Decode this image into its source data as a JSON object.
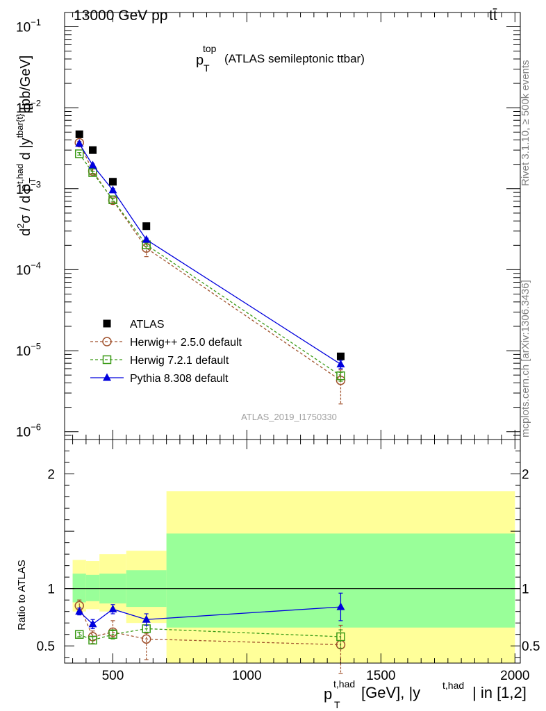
{
  "header": {
    "energy_label": "13000 GeV pp",
    "process_label": "tt̄"
  },
  "side_labels": {
    "rivet": "Rivet 3.1.10, ≥ 500k events",
    "mcplots": "mcplots.cern.ch [arXiv:1306.3436]"
  },
  "colors": {
    "atlas": "#000000",
    "herwigpp": "#a0522d",
    "herwig7": "#3a9a16",
    "pythia": "#0000dd",
    "band_inner": "#99ff99",
    "band_outer": "#ffff99"
  },
  "chart_data": [
    {
      "panel": "main",
      "type": "scatter",
      "title": "(ATLAS semileptonic ttbar)",
      "title_var": "p",
      "title_sup": "top",
      "title_sub": "T",
      "analysis_id": "ATLAS_2019_I1750330",
      "ylabel": "d²σ / d p_T^{t,had} d |y^{tbar{t}}|[pb/GeV]",
      "yscale": "log",
      "ylim": [
        8e-07,
        0.15
      ],
      "xlim": [
        320,
        2020
      ],
      "y_ticks": [
        {
          "value": 1e-06,
          "base": "10",
          "exp": "−6"
        },
        {
          "value": 1e-05,
          "base": "10",
          "exp": "−5"
        },
        {
          "value": 0.0001,
          "base": "10",
          "exp": "−4"
        },
        {
          "value": 0.001,
          "base": "10",
          "exp": "−3"
        },
        {
          "value": 0.01,
          "base": "10",
          "exp": "−2"
        },
        {
          "value": 0.1,
          "base": "10",
          "exp": "−1"
        }
      ],
      "legend_position": "lower-left",
      "series": [
        {
          "key": "atlas",
          "name": "ATLAS",
          "marker": "square-filled",
          "x": [
            375,
            425,
            500,
            625,
            1350
          ],
          "y": [
            0.0047,
            0.003,
            0.00122,
            0.000345,
            8.5e-06
          ],
          "xerr": [
            25,
            25,
            50,
            75,
            650
          ]
        },
        {
          "key": "herwigpp",
          "name": "Herwig++ 2.5.0 default",
          "marker": "circle-open",
          "dashed": true,
          "x": [
            375,
            425,
            500,
            625,
            1350
          ],
          "y": [
            0.0037,
            0.00165,
            0.00072,
            0.000185,
            4.3e-06
          ],
          "yerr_lo": [
            0.00015,
            0.0001,
            5e-05,
            4e-05,
            2.1e-06
          ],
          "yerr_hi": [
            0.00015,
            0.0001,
            5e-05,
            3e-05,
            1.5e-06
          ]
        },
        {
          "key": "herwig7",
          "name": "Herwig 7.2.1 default",
          "marker": "square-open",
          "dashed": true,
          "x": [
            375,
            425,
            500,
            625,
            1350
          ],
          "y": [
            0.0027,
            0.00158,
            0.00073,
            0.000203,
            4.9e-06
          ],
          "yerr_lo": [
            0.0001,
            6e-05,
            3e-05,
            1e-05,
            7e-07
          ],
          "yerr_hi": [
            0.0001,
            6e-05,
            3e-05,
            1e-05,
            5e-07
          ]
        },
        {
          "key": "pythia",
          "name": "Pythia 8.308 default",
          "marker": "triangle-filled",
          "x": [
            375,
            425,
            500,
            625,
            1350
          ],
          "y": [
            0.0036,
            0.00195,
            0.00096,
            0.000235,
            6.8e-06
          ],
          "yerr_lo": [
            0.0001,
            7e-05,
            4e-05,
            1e-05,
            8e-07
          ],
          "yerr_hi": [
            0.0001,
            7e-05,
            4e-05,
            1e-05,
            8e-07
          ]
        }
      ]
    },
    {
      "panel": "ratio",
      "type": "scatter",
      "ylabel": "Ratio to ATLAS",
      "xlabel_main": "p",
      "xlabel_sup": "t,had",
      "xlabel_sub": "T",
      "xlabel_rest1": " [GeV], |y",
      "xlabel_sup2": "t,had",
      "xlabel_rest2": "| in [1,2]",
      "xlim": [
        320,
        2020
      ],
      "ylim": [
        0.35,
        2.3
      ],
      "x_ticks": [
        500,
        1000,
        1500,
        2000
      ],
      "y_ticks": [
        0.5,
        1,
        2
      ],
      "bands": [
        {
          "x0": 350,
          "x1": 400,
          "inner": [
            0.88,
            1.13
          ],
          "outer": [
            0.8,
            1.25
          ]
        },
        {
          "x0": 400,
          "x1": 450,
          "inner": [
            0.89,
            1.12
          ],
          "outer": [
            0.82,
            1.24
          ]
        },
        {
          "x0": 450,
          "x1": 550,
          "inner": [
            0.87,
            1.13
          ],
          "outer": [
            0.8,
            1.3
          ]
        },
        {
          "x0": 550,
          "x1": 700,
          "inner": [
            0.84,
            1.16
          ],
          "outer": [
            0.7,
            1.33
          ]
        },
        {
          "x0": 700,
          "x1": 2000,
          "inner": [
            0.66,
            1.48
          ],
          "outer": [
            0.35,
            1.85
          ]
        }
      ],
      "series": [
        {
          "key": "herwigpp",
          "marker": "circle-open",
          "dashed": true,
          "x": [
            375,
            425,
            500,
            625,
            1350
          ],
          "y": [
            0.85,
            0.58,
            0.62,
            0.56,
            0.51
          ],
          "yerr_lo": [
            0.05,
            0.06,
            0.05,
            0.18,
            0.25
          ],
          "yerr_hi": [
            0.05,
            0.05,
            0.1,
            0.05,
            0.17
          ]
        },
        {
          "key": "herwig7",
          "marker": "square-open",
          "dashed": true,
          "x": [
            375,
            425,
            500,
            625,
            1350
          ],
          "y": [
            0.6,
            0.55,
            0.6,
            0.65,
            0.58
          ],
          "yerr_lo": [
            0.02,
            0.03,
            0.04,
            0.03,
            0.1
          ],
          "yerr_hi": [
            0.02,
            0.03,
            0.04,
            0.03,
            0.06
          ]
        },
        {
          "key": "pythia",
          "marker": "triangle-filled",
          "x": [
            375,
            425,
            500,
            625,
            1350
          ],
          "y": [
            0.8,
            0.69,
            0.82,
            0.73,
            0.84
          ],
          "yerr_lo": [
            0.03,
            0.04,
            0.04,
            0.05,
            0.12
          ],
          "yerr_hi": [
            0.03,
            0.04,
            0.04,
            0.05,
            0.12
          ]
        }
      ]
    }
  ]
}
